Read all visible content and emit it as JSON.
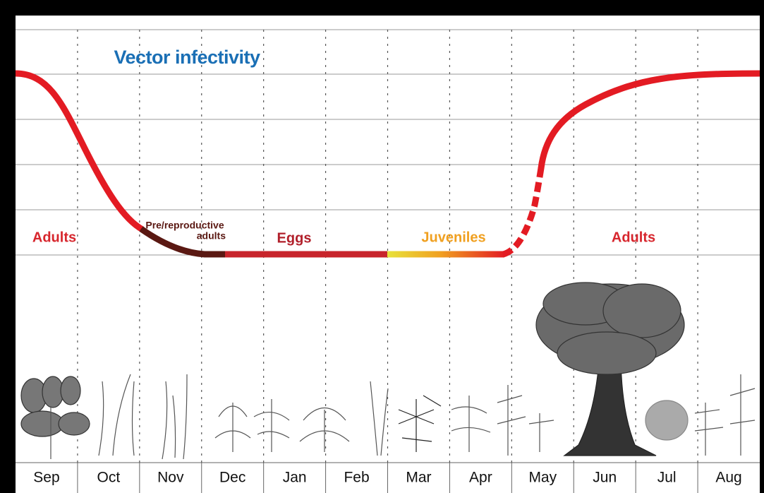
{
  "title": "Vector infectivity",
  "stages": [
    {
      "label": "Adults"
    },
    {
      "label": [
        "Pre/reproductive",
        "adults"
      ]
    },
    {
      "label": "Eggs"
    },
    {
      "label": "Juveniles"
    },
    {
      "label": "Adults"
    }
  ],
  "months": [
    "Sep",
    "Oct",
    "Nov",
    "Dec",
    "Jan",
    "Feb",
    "Mar",
    "Apr",
    "May",
    "Jun",
    "Jul",
    "Aug"
  ]
}
